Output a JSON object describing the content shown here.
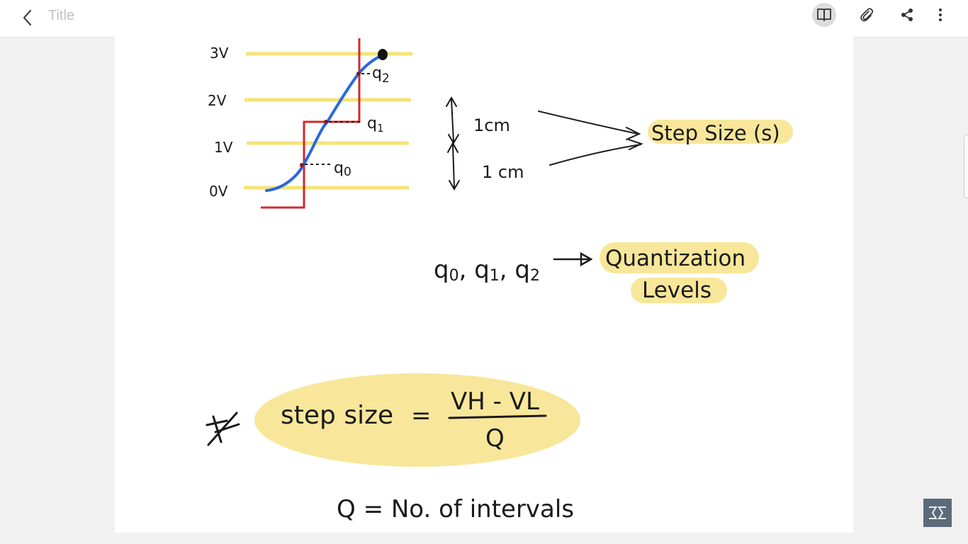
{
  "app": {
    "title": "Title"
  },
  "toolbar": {
    "icons": [
      "back-arrow-icon",
      "book-icon",
      "attachment-icon",
      "share-icon",
      "more-vert-icon"
    ]
  },
  "note": {
    "graph": {
      "y_labels": [
        "3V",
        "2V",
        "1V",
        "0V"
      ],
      "point_labels": [
        "q2",
        "q1",
        "q0"
      ]
    },
    "step_annotation": {
      "measure_1": "1cm",
      "measure_2": "1 cm",
      "result": "Step Size (s)"
    },
    "levels_annotation": {
      "symbols": "q0, q1, q2",
      "result_line1": "Quantization",
      "result_line2": "Levels"
    },
    "formula": {
      "lhs": "step size",
      "equals": "=",
      "numerator": "VH - VL",
      "denominator": "Q"
    },
    "definition": "Q = No. of intervals"
  },
  "colors": {
    "highlight": "#f8e79a",
    "grid_line": "#f5e37a",
    "signal": "#2b67e0",
    "staircase": "#d62828",
    "ink": "#1a1a1a"
  }
}
